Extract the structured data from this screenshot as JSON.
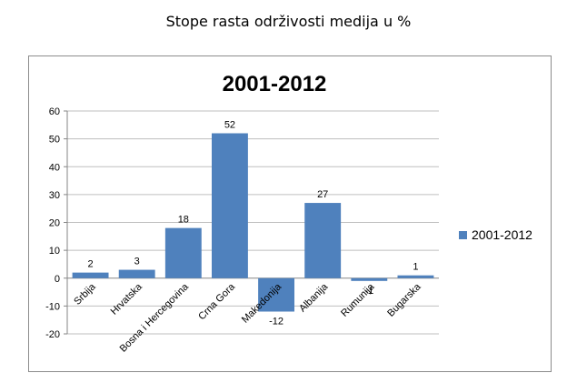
{
  "page_title": "Stope rasta održivosti medija u %",
  "chart_data": {
    "type": "bar",
    "title": "2001-2012",
    "categories": [
      "Srbija",
      "Hrvatska",
      "Bosna i Hercegovina",
      "Crna Gora",
      "Makedonija",
      "Albanija",
      "Rumunija",
      "Bugarska"
    ],
    "series": [
      {
        "name": "2001-2012",
        "values": [
          2,
          3,
          18,
          52,
          -12,
          27,
          -1,
          1
        ]
      }
    ],
    "data_labels": [
      "2",
      "3",
      "18",
      "52",
      "-12",
      "27",
      "-1",
      "1"
    ],
    "yticks": [
      "60",
      "50",
      "40",
      "30",
      "20",
      "10",
      "0",
      "-10",
      "-20"
    ],
    "ylim": [
      -20,
      60
    ],
    "grid": true,
    "legend": "right",
    "colors": {
      "bar": "#4f81bd",
      "grid": "#bfbfbf",
      "axis": "#868686"
    }
  }
}
